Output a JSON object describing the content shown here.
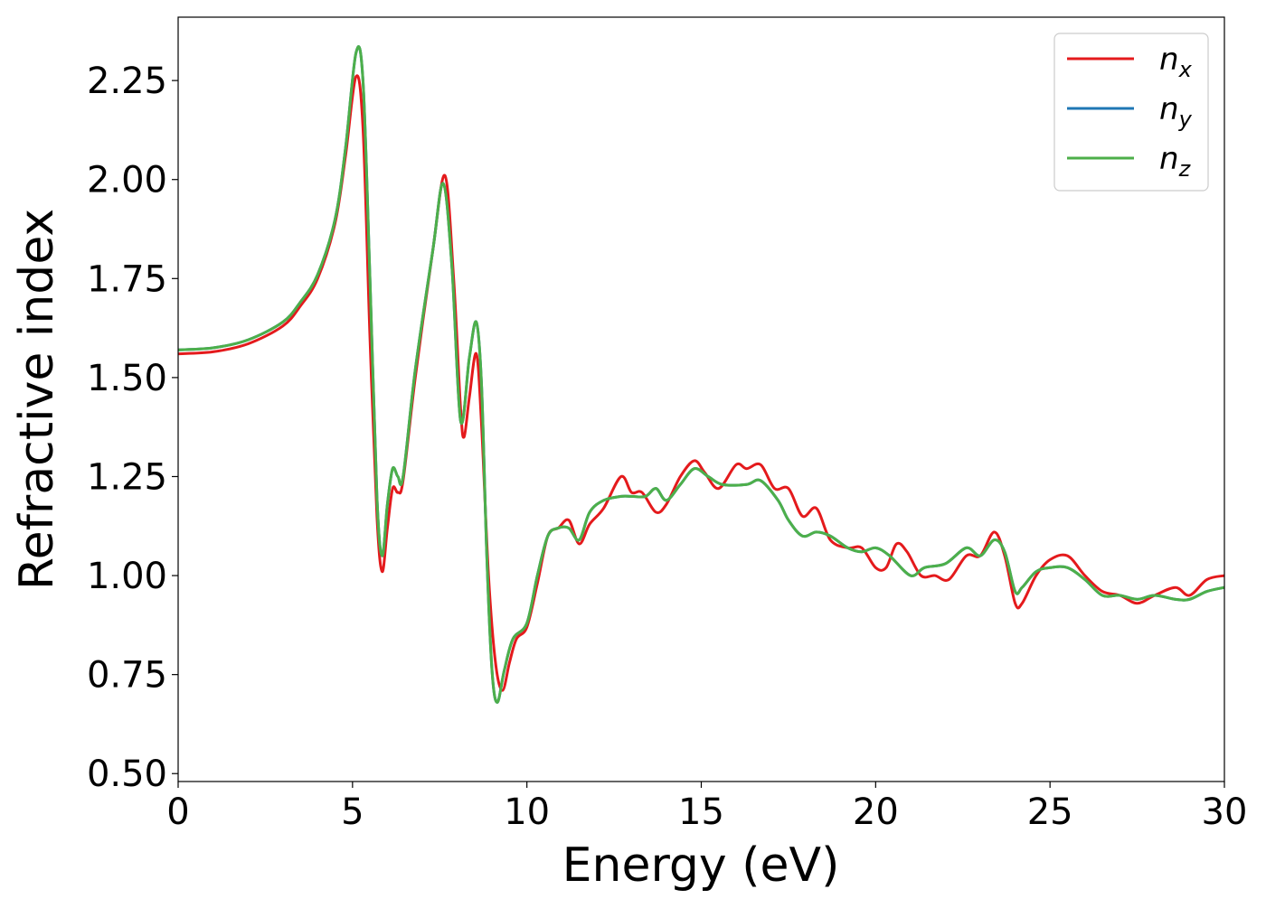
{
  "chart_data": {
    "type": "line",
    "title": "",
    "xlabel": "Energy (eV)",
    "ylabel": "Refractive index",
    "xlim": [
      0,
      30
    ],
    "ylim": [
      0.48,
      2.41
    ],
    "xticks": [
      0,
      5,
      10,
      15,
      20,
      25,
      30
    ],
    "yticks": [
      0.5,
      0.75,
      1.0,
      1.25,
      1.5,
      1.75,
      2.0,
      2.25
    ],
    "xtick_labels": [
      "0",
      "5",
      "10",
      "15",
      "20",
      "25",
      "30"
    ],
    "ytick_labels": [
      "0.50",
      "0.75",
      "1.00",
      "1.25",
      "1.50",
      "1.75",
      "2.00",
      "2.25"
    ],
    "grid": false,
    "legend_position": "top-right",
    "series": [
      {
        "name": "n_x",
        "base": "n",
        "sub": "x",
        "color": "#e41a1c",
        "points": [
          [
            0,
            1.56
          ],
          [
            1,
            1.565
          ],
          [
            2,
            1.585
          ],
          [
            3,
            1.63
          ],
          [
            3.5,
            1.68
          ],
          [
            4,
            1.75
          ],
          [
            4.5,
            1.89
          ],
          [
            4.8,
            2.06
          ],
          [
            5.1,
            2.26
          ],
          [
            5.3,
            2.13
          ],
          [
            5.5,
            1.6
          ],
          [
            5.7,
            1.15
          ],
          [
            5.85,
            1.01
          ],
          [
            6.0,
            1.12
          ],
          [
            6.15,
            1.22
          ],
          [
            6.3,
            1.21
          ],
          [
            6.45,
            1.24
          ],
          [
            6.8,
            1.5
          ],
          [
            7.3,
            1.82
          ],
          [
            7.65,
            2.01
          ],
          [
            7.9,
            1.75
          ],
          [
            8.1,
            1.42
          ],
          [
            8.2,
            1.35
          ],
          [
            8.35,
            1.45
          ],
          [
            8.55,
            1.56
          ],
          [
            8.7,
            1.38
          ],
          [
            8.9,
            1.0
          ],
          [
            9.1,
            0.78
          ],
          [
            9.3,
            0.71
          ],
          [
            9.5,
            0.78
          ],
          [
            9.7,
            0.84
          ],
          [
            10.0,
            0.87
          ],
          [
            10.3,
            0.98
          ],
          [
            10.6,
            1.1
          ],
          [
            10.9,
            1.12
          ],
          [
            11.2,
            1.14
          ],
          [
            11.5,
            1.08
          ],
          [
            11.8,
            1.13
          ],
          [
            12.2,
            1.17
          ],
          [
            12.7,
            1.25
          ],
          [
            13.0,
            1.21
          ],
          [
            13.3,
            1.21
          ],
          [
            13.7,
            1.16
          ],
          [
            14.0,
            1.18
          ],
          [
            14.4,
            1.25
          ],
          [
            14.8,
            1.29
          ],
          [
            15.1,
            1.26
          ],
          [
            15.5,
            1.22
          ],
          [
            16.0,
            1.28
          ],
          [
            16.3,
            1.27
          ],
          [
            16.7,
            1.28
          ],
          [
            17.1,
            1.22
          ],
          [
            17.5,
            1.22
          ],
          [
            17.9,
            1.15
          ],
          [
            18.3,
            1.17
          ],
          [
            18.7,
            1.09
          ],
          [
            19.2,
            1.07
          ],
          [
            19.6,
            1.07
          ],
          [
            20.0,
            1.02
          ],
          [
            20.3,
            1.02
          ],
          [
            20.6,
            1.08
          ],
          [
            20.9,
            1.06
          ],
          [
            21.3,
            1.0
          ],
          [
            21.7,
            1.0
          ],
          [
            22.1,
            0.99
          ],
          [
            22.6,
            1.05
          ],
          [
            23.0,
            1.05
          ],
          [
            23.4,
            1.11
          ],
          [
            23.7,
            1.05
          ],
          [
            24.0,
            0.93
          ],
          [
            24.2,
            0.93
          ],
          [
            24.6,
            1.0
          ],
          [
            25.0,
            1.04
          ],
          [
            25.5,
            1.05
          ],
          [
            26.0,
            1.0
          ],
          [
            26.5,
            0.96
          ],
          [
            27.0,
            0.95
          ],
          [
            27.5,
            0.93
          ],
          [
            28.0,
            0.95
          ],
          [
            28.6,
            0.97
          ],
          [
            29.0,
            0.95
          ],
          [
            29.5,
            0.99
          ],
          [
            30.0,
            1.0
          ]
        ]
      },
      {
        "name": "n_y",
        "base": "n",
        "sub": "y",
        "color": "#1f77b4",
        "points": [
          [
            0,
            1.57
          ],
          [
            1,
            1.575
          ],
          [
            2,
            1.595
          ],
          [
            3,
            1.64
          ],
          [
            3.5,
            1.69
          ],
          [
            4,
            1.76
          ],
          [
            4.5,
            1.9
          ],
          [
            4.8,
            2.08
          ],
          [
            5.1,
            2.32
          ],
          [
            5.3,
            2.25
          ],
          [
            5.5,
            1.75
          ],
          [
            5.7,
            1.2
          ],
          [
            5.85,
            1.05
          ],
          [
            6.0,
            1.18
          ],
          [
            6.15,
            1.27
          ],
          [
            6.3,
            1.25
          ],
          [
            6.45,
            1.25
          ],
          [
            6.8,
            1.52
          ],
          [
            7.3,
            1.82
          ],
          [
            7.6,
            1.99
          ],
          [
            7.85,
            1.78
          ],
          [
            8.1,
            1.39
          ],
          [
            8.35,
            1.55
          ],
          [
            8.55,
            1.64
          ],
          [
            8.7,
            1.48
          ],
          [
            8.85,
            1.05
          ],
          [
            9.0,
            0.76
          ],
          [
            9.15,
            0.68
          ],
          [
            9.35,
            0.76
          ],
          [
            9.6,
            0.84
          ],
          [
            10.0,
            0.88
          ],
          [
            10.3,
            1.0
          ],
          [
            10.6,
            1.1
          ],
          [
            10.9,
            1.12
          ],
          [
            11.2,
            1.12
          ],
          [
            11.5,
            1.09
          ],
          [
            11.8,
            1.16
          ],
          [
            12.2,
            1.19
          ],
          [
            12.7,
            1.2
          ],
          [
            13.0,
            1.2
          ],
          [
            13.4,
            1.2
          ],
          [
            13.7,
            1.22
          ],
          [
            14.0,
            1.19
          ],
          [
            14.4,
            1.23
          ],
          [
            14.8,
            1.27
          ],
          [
            15.2,
            1.25
          ],
          [
            15.6,
            1.23
          ],
          [
            16.3,
            1.23
          ],
          [
            16.7,
            1.24
          ],
          [
            17.2,
            1.19
          ],
          [
            17.5,
            1.14
          ],
          [
            17.9,
            1.1
          ],
          [
            18.3,
            1.11
          ],
          [
            18.7,
            1.1
          ],
          [
            19.2,
            1.07
          ],
          [
            19.6,
            1.06
          ],
          [
            20.0,
            1.07
          ],
          [
            20.4,
            1.05
          ],
          [
            21.0,
            1.0
          ],
          [
            21.4,
            1.02
          ],
          [
            22.0,
            1.03
          ],
          [
            22.6,
            1.07
          ],
          [
            23.0,
            1.05
          ],
          [
            23.4,
            1.09
          ],
          [
            23.7,
            1.06
          ],
          [
            24.0,
            0.96
          ],
          [
            24.2,
            0.97
          ],
          [
            24.6,
            1.01
          ],
          [
            25.0,
            1.02
          ],
          [
            25.5,
            1.02
          ],
          [
            26.0,
            0.99
          ],
          [
            26.5,
            0.95
          ],
          [
            27.0,
            0.95
          ],
          [
            27.5,
            0.94
          ],
          [
            28.0,
            0.95
          ],
          [
            28.6,
            0.94
          ],
          [
            29.0,
            0.94
          ],
          [
            29.5,
            0.96
          ],
          [
            30.0,
            0.97
          ]
        ]
      },
      {
        "name": "n_z",
        "base": "n",
        "sub": "z",
        "color": "#4daf4a",
        "points": [
          [
            0,
            1.57
          ],
          [
            1,
            1.575
          ],
          [
            2,
            1.595
          ],
          [
            3,
            1.64
          ],
          [
            3.5,
            1.69
          ],
          [
            4,
            1.76
          ],
          [
            4.5,
            1.9
          ],
          [
            4.8,
            2.08
          ],
          [
            5.1,
            2.32
          ],
          [
            5.3,
            2.25
          ],
          [
            5.5,
            1.75
          ],
          [
            5.7,
            1.2
          ],
          [
            5.85,
            1.05
          ],
          [
            6.0,
            1.18
          ],
          [
            6.15,
            1.27
          ],
          [
            6.3,
            1.25
          ],
          [
            6.45,
            1.25
          ],
          [
            6.8,
            1.52
          ],
          [
            7.3,
            1.82
          ],
          [
            7.6,
            1.99
          ],
          [
            7.85,
            1.78
          ],
          [
            8.1,
            1.39
          ],
          [
            8.35,
            1.55
          ],
          [
            8.55,
            1.64
          ],
          [
            8.7,
            1.48
          ],
          [
            8.85,
            1.05
          ],
          [
            9.0,
            0.76
          ],
          [
            9.15,
            0.68
          ],
          [
            9.35,
            0.76
          ],
          [
            9.6,
            0.84
          ],
          [
            10.0,
            0.88
          ],
          [
            10.3,
            1.0
          ],
          [
            10.6,
            1.1
          ],
          [
            10.9,
            1.12
          ],
          [
            11.2,
            1.12
          ],
          [
            11.5,
            1.09
          ],
          [
            11.8,
            1.16
          ],
          [
            12.2,
            1.19
          ],
          [
            12.7,
            1.2
          ],
          [
            13.0,
            1.2
          ],
          [
            13.4,
            1.2
          ],
          [
            13.7,
            1.22
          ],
          [
            14.0,
            1.19
          ],
          [
            14.4,
            1.23
          ],
          [
            14.8,
            1.27
          ],
          [
            15.2,
            1.25
          ],
          [
            15.6,
            1.23
          ],
          [
            16.3,
            1.23
          ],
          [
            16.7,
            1.24
          ],
          [
            17.2,
            1.19
          ],
          [
            17.5,
            1.14
          ],
          [
            17.9,
            1.1
          ],
          [
            18.3,
            1.11
          ],
          [
            18.7,
            1.1
          ],
          [
            19.2,
            1.07
          ],
          [
            19.6,
            1.06
          ],
          [
            20.0,
            1.07
          ],
          [
            20.4,
            1.05
          ],
          [
            21.0,
            1.0
          ],
          [
            21.4,
            1.02
          ],
          [
            22.0,
            1.03
          ],
          [
            22.6,
            1.07
          ],
          [
            23.0,
            1.05
          ],
          [
            23.4,
            1.09
          ],
          [
            23.7,
            1.06
          ],
          [
            24.0,
            0.96
          ],
          [
            24.2,
            0.97
          ],
          [
            24.6,
            1.01
          ],
          [
            25.0,
            1.02
          ],
          [
            25.5,
            1.02
          ],
          [
            26.0,
            0.99
          ],
          [
            26.5,
            0.95
          ],
          [
            27.0,
            0.95
          ],
          [
            27.5,
            0.94
          ],
          [
            28.0,
            0.95
          ],
          [
            28.6,
            0.94
          ],
          [
            29.0,
            0.94
          ],
          [
            29.5,
            0.96
          ],
          [
            30.0,
            0.97
          ]
        ]
      }
    ]
  }
}
